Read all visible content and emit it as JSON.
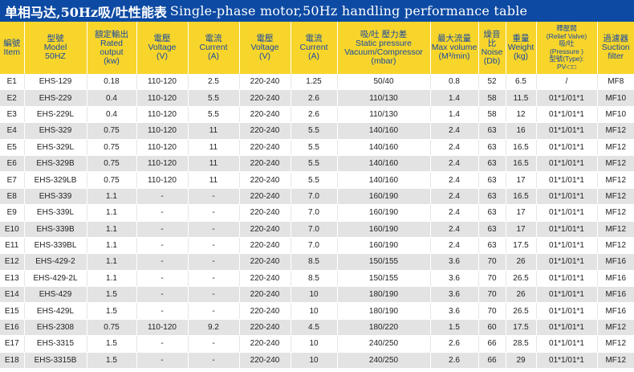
{
  "title": {
    "cn": "单相马达,50Hz吸/吐性能表",
    "en": "Single-phase motor,50Hz handling performance table"
  },
  "columns": [
    {
      "key": "item",
      "lines": [
        "編號",
        "Item"
      ]
    },
    {
      "key": "model",
      "lines": [
        "型號",
        "Model",
        "50HZ"
      ]
    },
    {
      "key": "rated_output",
      "lines": [
        "額定輸出",
        "Rated output",
        "(kw)"
      ]
    },
    {
      "key": "voltage1",
      "lines": [
        "電壓",
        "Voltage",
        "(V)"
      ]
    },
    {
      "key": "current1",
      "lines": [
        "電流",
        "Current",
        "(A)"
      ]
    },
    {
      "key": "voltage2",
      "lines": [
        "電壓",
        "Voltage",
        "(V)"
      ]
    },
    {
      "key": "current2",
      "lines": [
        "電流",
        "Current",
        "(A)"
      ]
    },
    {
      "key": "static_pressure",
      "lines": [
        "吸/吐 壓力差",
        "Static pressure",
        "Vacuum/Compressor",
        "(mbar)"
      ]
    },
    {
      "key": "max_volume",
      "lines": [
        "最大流量",
        "Max volume",
        "(M³/min)"
      ]
    },
    {
      "key": "noise",
      "lines": [
        "燥音比",
        "Noise",
        "(Db)"
      ]
    },
    {
      "key": "weight",
      "lines": [
        "重量",
        "Weight",
        "(kg)"
      ]
    },
    {
      "key": "relief_valve",
      "small": true,
      "lines": [
        "釋壓閥",
        "(Relief Valve)",
        "吸/吐",
        "(Pressure )",
        "型號(Type):",
        "PV-□□"
      ]
    },
    {
      "key": "suction_filter",
      "lines": [
        "過濾器",
        "Suction",
        "filter"
      ]
    }
  ],
  "rows": [
    [
      "E1",
      "EHS-129",
      "0.18",
      "110-120",
      "2.5",
      "220-240",
      "1.25",
      "50/40",
      "0.8",
      "52",
      "6.5",
      "/",
      "MF8"
    ],
    [
      "E2",
      "EHS-229",
      "0.4",
      "110-120",
      "5.5",
      "220-240",
      "2.6",
      "110/130",
      "1.4",
      "58",
      "11.5",
      "01*1/01*1",
      "MF10"
    ],
    [
      "E3",
      "EHS-229L",
      "0.4",
      "110-120",
      "5.5",
      "220-240",
      "2.6",
      "110/130",
      "1.4",
      "58",
      "12",
      "01*1/01*1",
      "MF10"
    ],
    [
      "E4",
      "EHS-329",
      "0.75",
      "110-120",
      "11",
      "220-240",
      "5.5",
      "140/160",
      "2.4",
      "63",
      "16",
      "01*1/01*1",
      "MF12"
    ],
    [
      "E5",
      "EHS-329L",
      "0.75",
      "110-120",
      "11",
      "220-240",
      "5.5",
      "140/160",
      "2.4",
      "63",
      "16.5",
      "01*1/01*1",
      "MF12"
    ],
    [
      "E6",
      "EHS-329B",
      "0.75",
      "110-120",
      "11",
      "220-240",
      "5.5",
      "140/160",
      "2.4",
      "63",
      "16.5",
      "01*1/01*1",
      "MF12"
    ],
    [
      "E7",
      "EHS-329LB",
      "0.75",
      "110-120",
      "11",
      "220-240",
      "5.5",
      "140/160",
      "2.4",
      "63",
      "17",
      "01*1/01*1",
      "MF12"
    ],
    [
      "E8",
      "EHS-339",
      "1.1",
      "-",
      "-",
      "220-240",
      "7.0",
      "160/190",
      "2.4",
      "63",
      "16.5",
      "01*1/01*1",
      "MF12"
    ],
    [
      "E9",
      "EHS-339L",
      "1.1",
      "-",
      "-",
      "220-240",
      "7.0",
      "160/190",
      "2.4",
      "63",
      "17",
      "01*1/01*1",
      "MF12"
    ],
    [
      "E10",
      "EHS-339B",
      "1.1",
      "-",
      "-",
      "220-240",
      "7.0",
      "160/190",
      "2.4",
      "63",
      "17",
      "01*1/01*1",
      "MF12"
    ],
    [
      "E11",
      "EHS-339BL",
      "1.1",
      "-",
      "-",
      "220-240",
      "7.0",
      "160/190",
      "2.4",
      "63",
      "17.5",
      "01*1/01*1",
      "MF12"
    ],
    [
      "E12",
      "EHS-429-2",
      "1.1",
      "-",
      "-",
      "220-240",
      "8.5",
      "150/155",
      "3.6",
      "70",
      "26",
      "01*1/01*1",
      "MF16"
    ],
    [
      "E13",
      "EHS-429-2L",
      "1.1",
      "-",
      "-",
      "220-240",
      "8.5",
      "150/155",
      "3.6",
      "70",
      "26.5",
      "01*1/01*1",
      "MF16"
    ],
    [
      "E14",
      "EHS-429",
      "1.5",
      "-",
      "-",
      "220-240",
      "10",
      "180/190",
      "3.6",
      "70",
      "26",
      "01*1/01*1",
      "MF16"
    ],
    [
      "E15",
      "EHS-429L",
      "1.5",
      "-",
      "-",
      "220-240",
      "10",
      "180/190",
      "3.6",
      "70",
      "26.5",
      "01*1/01*1",
      "MF16"
    ],
    [
      "E16",
      "EHS-2308",
      "0.75",
      "110-120",
      "9.2",
      "220-240",
      "4.5",
      "180/220",
      "1.5",
      "60",
      "17.5",
      "01*1/01*1",
      "MF12"
    ],
    [
      "E17",
      "EHS-3315",
      "1.5",
      "-",
      "-",
      "220-240",
      "10",
      "240/250",
      "2.6",
      "66",
      "28.5",
      "01*1/01*1",
      "MF12"
    ],
    [
      "E18",
      "EHS-3315B",
      "1.5",
      "-",
      "-",
      "220-240",
      "10",
      "240/250",
      "2.6",
      "66",
      "29",
      "01*1/01*1",
      "MF12"
    ]
  ]
}
